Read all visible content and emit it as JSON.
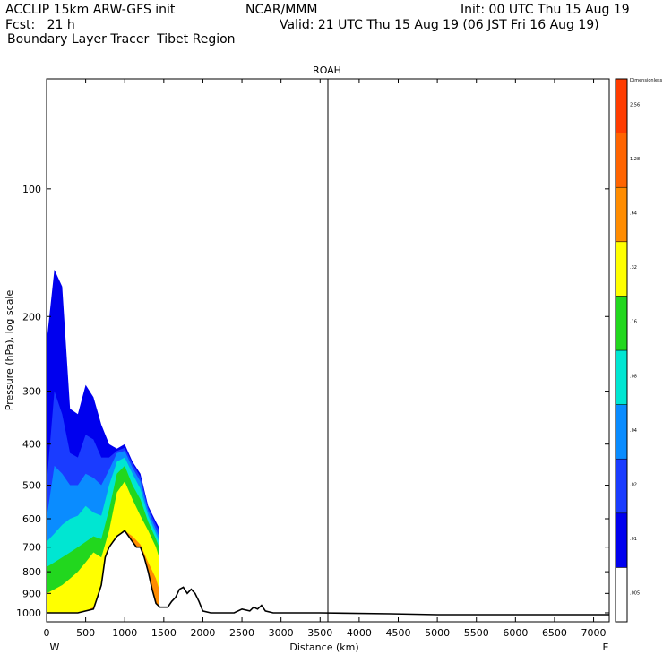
{
  "header": {
    "model": "ACCLIP 15km ARW-GFS init",
    "org": "NCAR/MMM",
    "init": "Init: 00 UTC Thu 15 Aug 19",
    "fcst": "Fcst:   21 h",
    "valid": "Valid: 21 UTC Thu 15 Aug 19 (06 JST Fri 16 Aug 19)",
    "product": "Boundary Layer Tracer  Tibet Region"
  },
  "chart_data": {
    "type": "heatmap",
    "title": "ROAH",
    "xlabel": "Distance (km)",
    "ylabel": "Pressure (hPa), log scale",
    "xlim": [
      0,
      7200
    ],
    "ylim_hpa": [
      1050,
      55
    ],
    "x_ticks": [
      0,
      500,
      1000,
      1500,
      2000,
      2500,
      3000,
      3500,
      4000,
      4500,
      5000,
      5500,
      6000,
      6500,
      7000
    ],
    "y_ticks": [
      100,
      200,
      300,
      400,
      500,
      600,
      700,
      800,
      900,
      1000
    ],
    "x_end_labels": {
      "left": "W",
      "right": "E"
    },
    "marker_line_km": 3600,
    "colorbar": {
      "labels": [
        ".005",
        ".01",
        ".02",
        ".04",
        ".08",
        ".16",
        ".32",
        ".64",
        "1.28",
        "2.56",
        "Dimensionless"
      ],
      "colors": [
        "#ffffff",
        "#0000ee",
        "#1a3cff",
        "#0a8cff",
        "#00e6d2",
        "#22d71e",
        "#ffff00",
        "#ff8c00",
        "#ff6400",
        "#ff3c00"
      ]
    },
    "tracer_columns": [
      {
        "km": 0,
        "top_hpa": 230,
        "bands": [
          1000,
          900,
          780,
          680,
          600,
          500
        ]
      },
      {
        "km": 100,
        "top_hpa": 155,
        "bands": [
          1000,
          880,
          760,
          650,
          450,
          300
        ]
      },
      {
        "km": 200,
        "top_hpa": 170,
        "bands": [
          1000,
          860,
          740,
          620,
          470,
          340
        ]
      },
      {
        "km": 300,
        "top_hpa": 330,
        "bands": [
          1000,
          830,
          720,
          600,
          500,
          420
        ]
      },
      {
        "km": 400,
        "top_hpa": 340,
        "bands": [
          1000,
          800,
          700,
          590,
          500,
          430
        ]
      },
      {
        "km": 500,
        "top_hpa": 290,
        "bands": [
          990,
          760,
          680,
          560,
          470,
          380
        ]
      },
      {
        "km": 600,
        "top_hpa": 310,
        "bands": [
          970,
          720,
          660,
          580,
          480,
          390
        ]
      },
      {
        "km": 700,
        "top_hpa": 360,
        "bands": [
          860,
          740,
          670,
          590,
          500,
          430
        ]
      },
      {
        "km": 800,
        "top_hpa": 400,
        "bands": [
          770,
          640,
          570,
          500,
          460,
          430
        ]
      },
      {
        "km": 900,
        "top_hpa": 410,
        "bands": [
          680,
          520,
          470,
          440,
          420,
          415
        ]
      },
      {
        "km": 1000,
        "top_hpa": 400,
        "bands": [
          640,
          490,
          450,
          430,
          415,
          408
        ]
      },
      {
        "km": 1100,
        "top_hpa": 440,
        "bands": [
          660,
          540,
          500,
          470,
          455,
          445
        ]
      },
      {
        "km": 1200,
        "top_hpa": 470,
        "bands": [
          690,
          590,
          540,
          510,
          490,
          478
        ]
      },
      {
        "km": 1300,
        "top_hpa": 560,
        "bands": [
          760,
          640,
          610,
          590,
          575,
          565
        ]
      },
      {
        "km": 1400,
        "top_hpa": 610,
        "bands": [
          830,
          700,
          670,
          650,
          635,
          620
        ]
      },
      {
        "km": 1440,
        "top_hpa": 630,
        "bands": [
          880,
          740,
          700,
          680,
          660,
          640
        ]
      }
    ],
    "terrain": [
      [
        0,
        1000
      ],
      [
        200,
        1000
      ],
      [
        400,
        1000
      ],
      [
        600,
        980
      ],
      [
        650,
        920
      ],
      [
        700,
        860
      ],
      [
        750,
        740
      ],
      [
        800,
        700
      ],
      [
        850,
        680
      ],
      [
        900,
        660
      ],
      [
        950,
        650
      ],
      [
        1000,
        640
      ],
      [
        1050,
        660
      ],
      [
        1100,
        680
      ],
      [
        1150,
        700
      ],
      [
        1200,
        700
      ],
      [
        1250,
        740
      ],
      [
        1300,
        800
      ],
      [
        1350,
        880
      ],
      [
        1400,
        950
      ],
      [
        1450,
        970
      ],
      [
        1550,
        970
      ],
      [
        1600,
        940
      ],
      [
        1650,
        920
      ],
      [
        1700,
        880
      ],
      [
        1750,
        870
      ],
      [
        1800,
        900
      ],
      [
        1850,
        880
      ],
      [
        1900,
        900
      ],
      [
        1950,
        940
      ],
      [
        2000,
        990
      ],
      [
        2100,
        1000
      ],
      [
        2400,
        1000
      ],
      [
        2500,
        980
      ],
      [
        2600,
        990
      ],
      [
        2650,
        970
      ],
      [
        2700,
        980
      ],
      [
        2750,
        960
      ],
      [
        2800,
        990
      ],
      [
        2900,
        1000
      ],
      [
        3500,
        1000
      ],
      [
        4400,
        1005
      ],
      [
        5000,
        1010
      ],
      [
        6000,
        1010
      ],
      [
        7200,
        1010
      ]
    ]
  }
}
